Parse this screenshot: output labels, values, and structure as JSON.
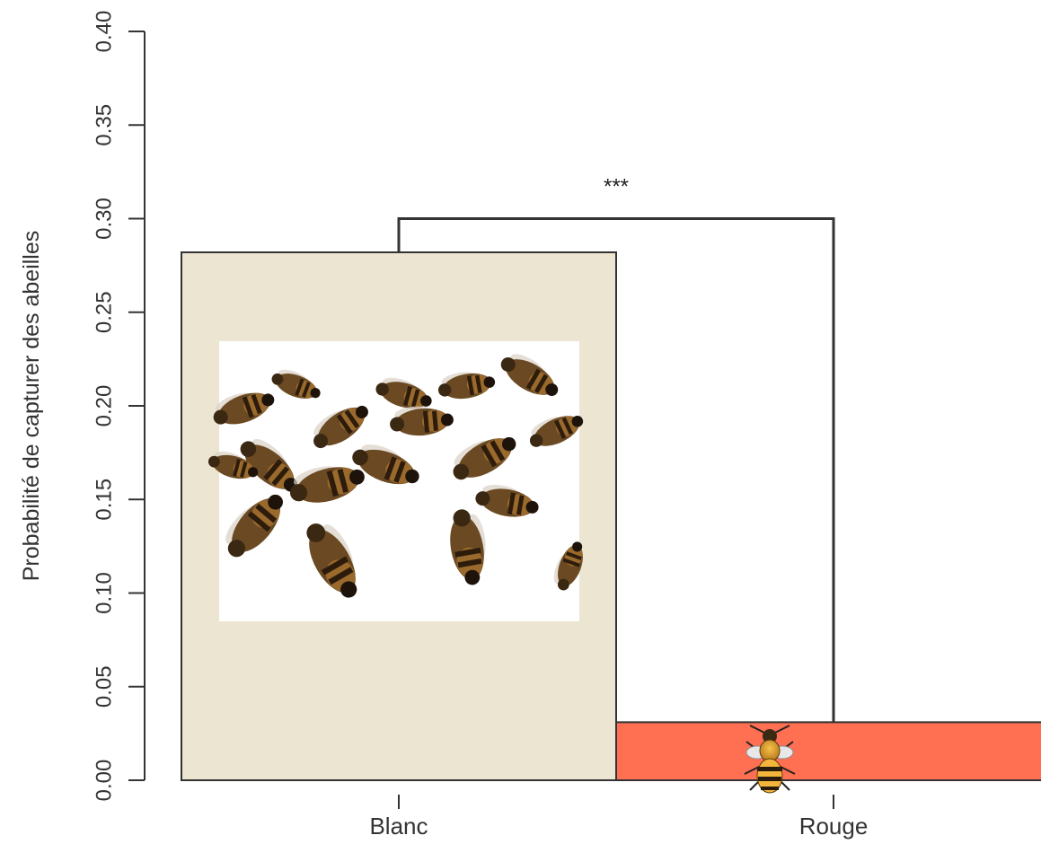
{
  "chart_data": {
    "type": "bar",
    "title": "",
    "ylabel": "Probabilité de capturer des abeilles",
    "xlabel": "",
    "ylim": [
      0,
      0.4
    ],
    "yticks": [
      "0.00",
      "0.05",
      "0.10",
      "0.15",
      "0.20",
      "0.25",
      "0.30",
      "0.35",
      "0.40"
    ],
    "categories": [
      "Blanc",
      "Rouge"
    ],
    "values": [
      0.282,
      0.031
    ],
    "colors": {
      "Blanc": "#ece5d1",
      "Rouge": "#ff6f52"
    },
    "annotations": [
      {
        "type": "significance-bracket",
        "from": "Blanc",
        "to": "Rouge",
        "y": 0.3,
        "label": "***"
      }
    ],
    "images": [
      {
        "category": "Blanc",
        "icon": "dead-bees-photo"
      },
      {
        "category": "Rouge",
        "icon": "bee-icon"
      }
    ],
    "grid": false,
    "legend": "none"
  }
}
